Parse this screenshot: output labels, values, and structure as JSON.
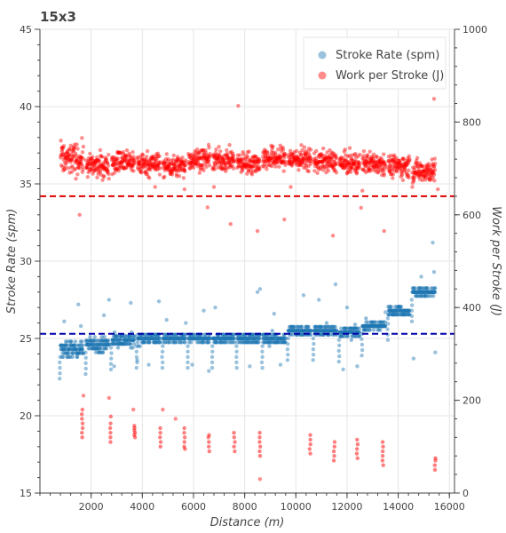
{
  "chart_data": {
    "type": "scatter",
    "title": "15x3",
    "xlabel": "Distance (m)",
    "ylabel_left": "Stroke Rate (spm)",
    "ylabel_right": "Work per Stroke (J)",
    "xlim": [
      0,
      16200
    ],
    "ylim_left": [
      15,
      45
    ],
    "ylim_right": [
      0,
      1000
    ],
    "x_ticks": [
      2000,
      4000,
      6000,
      8000,
      10000,
      12000,
      14000,
      16000
    ],
    "y_left_ticks": [
      15,
      20,
      25,
      30,
      35,
      40,
      45
    ],
    "y_right_ticks": [
      0,
      200,
      400,
      600,
      800,
      1000
    ],
    "grid": true,
    "legend_position": "top-right",
    "colors": {
      "stroke_rate": "#1f77b4",
      "work": "#ff0000",
      "mean_stroke_rate_line": "#0000aa",
      "mean_work_line": "#dd0000",
      "grid": "#e5e5e5",
      "axis": "#444444"
    },
    "mean_lines": {
      "stroke_rate": 25.3,
      "work": 640
    },
    "series": [
      {
        "name": "Stroke Rate (spm)",
        "axis": "left",
        "marker_color": "#1f77b4",
        "segments": [
          {
            "x_start": 800,
            "x_end": 1700,
            "base": 24.3,
            "spread": 0.9
          },
          {
            "x_start": 1800,
            "x_end": 2700,
            "base": 24.6,
            "spread": 0.8
          },
          {
            "x_start": 2800,
            "x_end": 3700,
            "base": 24.9,
            "spread": 0.7
          },
          {
            "x_start": 3800,
            "x_end": 4700,
            "base": 25.0,
            "spread": 0.6
          },
          {
            "x_start": 4800,
            "x_end": 5700,
            "base": 25.0,
            "spread": 0.5
          },
          {
            "x_start": 5800,
            "x_end": 6650,
            "base": 25.0,
            "spread": 0.5
          },
          {
            "x_start": 6750,
            "x_end": 7600,
            "base": 25.0,
            "spread": 0.5
          },
          {
            "x_start": 7700,
            "x_end": 8600,
            "base": 25.0,
            "spread": 0.5
          },
          {
            "x_start": 8700,
            "x_end": 9600,
            "base": 25.0,
            "spread": 0.6
          },
          {
            "x_start": 9700,
            "x_end": 10600,
            "base": 25.5,
            "spread": 0.6
          },
          {
            "x_start": 10700,
            "x_end": 11600,
            "base": 25.5,
            "spread": 0.6
          },
          {
            "x_start": 11700,
            "x_end": 12500,
            "base": 25.4,
            "spread": 0.6
          },
          {
            "x_start": 12600,
            "x_end": 13500,
            "base": 25.8,
            "spread": 0.5
          },
          {
            "x_start": 13600,
            "x_end": 14450,
            "base": 26.8,
            "spread": 0.5
          },
          {
            "x_start": 14550,
            "x_end": 15450,
            "base": 28.0,
            "spread": 0.5
          }
        ],
        "scattered_points": [
          [
            950,
            26.1
          ],
          [
            1500,
            27.2
          ],
          [
            1600,
            25.8
          ],
          [
            2700,
            27.5
          ],
          [
            2500,
            26.5
          ],
          [
            3550,
            27.3
          ],
          [
            4650,
            27.4
          ],
          [
            4950,
            26.2
          ],
          [
            5700,
            26.0
          ],
          [
            6400,
            26.8
          ],
          [
            6850,
            27.0
          ],
          [
            8600,
            28.2
          ],
          [
            8500,
            28.0
          ],
          [
            9150,
            26.6
          ],
          [
            10300,
            27.8
          ],
          [
            10900,
            27.5
          ],
          [
            11550,
            28.5
          ],
          [
            12000,
            27.0
          ],
          [
            13500,
            26.7
          ],
          [
            14900,
            29.0
          ],
          [
            15350,
            31.2
          ],
          [
            15400,
            29.3
          ],
          [
            15450,
            24.1
          ],
          [
            14600,
            23.7
          ],
          [
            9400,
            23.3
          ],
          [
            8200,
            23.2
          ],
          [
            5950,
            23.3
          ],
          [
            4250,
            23.3
          ],
          [
            11850,
            23.0
          ],
          [
            12400,
            23.2
          ],
          [
            6600,
            22.9
          ],
          [
            2900,
            23.2
          ],
          [
            3800,
            23.6
          ]
        ]
      },
      {
        "name": "Work per Stroke (J)",
        "axis": "right",
        "marker_color": "#ff0000",
        "segments": [
          {
            "x_start": 800,
            "x_end": 1700,
            "base": 720,
            "spread": 40
          },
          {
            "x_start": 1800,
            "x_end": 2700,
            "base": 705,
            "spread": 30
          },
          {
            "x_start": 2800,
            "x_end": 3700,
            "base": 715,
            "spread": 30
          },
          {
            "x_start": 3800,
            "x_end": 4700,
            "base": 710,
            "spread": 30
          },
          {
            "x_start": 4800,
            "x_end": 5700,
            "base": 705,
            "spread": 28
          },
          {
            "x_start": 5800,
            "x_end": 6650,
            "base": 720,
            "spread": 28
          },
          {
            "x_start": 6750,
            "x_end": 7600,
            "base": 718,
            "spread": 28
          },
          {
            "x_start": 7700,
            "x_end": 8600,
            "base": 712,
            "spread": 28
          },
          {
            "x_start": 8700,
            "x_end": 9600,
            "base": 722,
            "spread": 30
          },
          {
            "x_start": 9700,
            "x_end": 10600,
            "base": 720,
            "spread": 30
          },
          {
            "x_start": 10700,
            "x_end": 11600,
            "base": 715,
            "spread": 28
          },
          {
            "x_start": 11700,
            "x_end": 12500,
            "base": 710,
            "spread": 28
          },
          {
            "x_start": 12600,
            "x_end": 13500,
            "base": 712,
            "spread": 28
          },
          {
            "x_start": 13600,
            "x_end": 14450,
            "base": 705,
            "spread": 28
          },
          {
            "x_start": 14550,
            "x_end": 15450,
            "base": 695,
            "spread": 30
          }
        ],
        "low_clusters": [
          {
            "x": 1650,
            "values": [
              180,
              170,
              160,
              150,
              140,
              130,
              120
            ]
          },
          {
            "x": 2750,
            "values": [
              165,
              150,
              140,
              130,
              120,
              110
            ]
          },
          {
            "x": 3700,
            "values": [
              145,
              140,
              135,
              130,
              125,
              120
            ]
          },
          {
            "x": 4700,
            "values": [
              140,
              130,
              120,
              110,
              100
            ]
          },
          {
            "x": 5650,
            "values": [
              140,
              130,
              120,
              110,
              100,
              95
            ]
          },
          {
            "x": 6600,
            "values": [
              125,
              120,
              110,
              100,
              90
            ]
          },
          {
            "x": 7600,
            "values": [
              130,
              120,
              110,
              100,
              90
            ]
          },
          {
            "x": 8600,
            "values": [
              130,
              120,
              110,
              100,
              90,
              80
            ]
          },
          {
            "x": 10550,
            "values": [
              125,
              115,
              105,
              95,
              85
            ]
          },
          {
            "x": 11500,
            "values": [
              110,
              100,
              90,
              80,
              70
            ]
          },
          {
            "x": 12400,
            "values": [
              115,
              105,
              95,
              85,
              75
            ]
          },
          {
            "x": 13400,
            "values": [
              110,
              100,
              90,
              80,
              70,
              60
            ]
          },
          {
            "x": 15450,
            "values": [
              75,
              70,
              60,
              50
            ]
          }
        ],
        "scattered_points": [
          [
            1550,
            600
          ],
          [
            1700,
            210
          ],
          [
            2700,
            205
          ],
          [
            3650,
            180
          ],
          [
            4800,
            180
          ],
          [
            5300,
            160
          ],
          [
            6550,
            616
          ],
          [
            7450,
            580
          ],
          [
            7750,
            835
          ],
          [
            8500,
            565
          ],
          [
            9550,
            590
          ],
          [
            11450,
            555
          ],
          [
            12550,
            615
          ],
          [
            13450,
            565
          ],
          [
            15400,
            850
          ],
          [
            8600,
            30
          ],
          [
            14550,
            660
          ],
          [
            6800,
            660
          ],
          [
            4500,
            660
          ],
          [
            9800,
            660
          ],
          [
            12600,
            652
          ],
          [
            5650,
            655
          ],
          [
            15550,
            655
          ]
        ]
      }
    ]
  }
}
